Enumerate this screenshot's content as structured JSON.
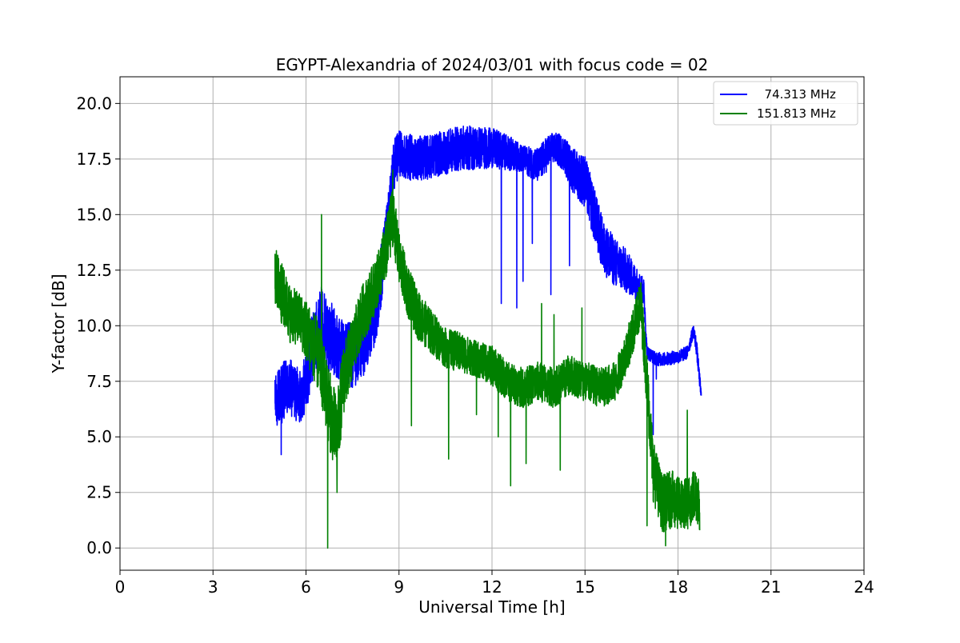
{
  "chart_data": {
    "type": "line",
    "title": "EGYPT-Alexandria of 2024/03/01 with focus code = 02",
    "xlabel": "Universal Time [h]",
    "ylabel": "Y-factor [dB]",
    "xlim": [
      0,
      24
    ],
    "ylim": [
      -1,
      21.2
    ],
    "xticks": [
      0,
      3,
      6,
      9,
      12,
      15,
      18,
      21,
      24
    ],
    "yticks": [
      0.0,
      2.5,
      5.0,
      7.5,
      10.0,
      12.5,
      15.0,
      17.5,
      20.0
    ],
    "xtick_labels": [
      "0",
      "3",
      "6",
      "9",
      "12",
      "15",
      "18",
      "21",
      "24"
    ],
    "ytick_labels": [
      "0.0",
      "2.5",
      "5.0",
      "7.5",
      "10.0",
      "12.5",
      "15.0",
      "17.5",
      "20.0"
    ],
    "grid": true,
    "legend_position": "top-right",
    "series": [
      {
        "name": "  74.313 MHz",
        "color": "#0000ff",
        "x": [
          5.0,
          5.2,
          5.5,
          5.8,
          6.0,
          6.2,
          6.5,
          6.8,
          7.0,
          7.3,
          7.6,
          8.0,
          8.3,
          8.6,
          8.8,
          9.0,
          9.5,
          10.0,
          10.5,
          11.0,
          11.5,
          12.0,
          12.5,
          13.0,
          13.5,
          13.8,
          14.0,
          14.3,
          14.6,
          15.0,
          15.3,
          15.6,
          16.0,
          16.3,
          16.6,
          16.9,
          17.0,
          17.3,
          17.6,
          18.0,
          18.3,
          18.5,
          18.6,
          18.75
        ],
        "y": [
          6.5,
          7.0,
          7.2,
          6.8,
          7.5,
          9.0,
          10.0,
          9.5,
          9.0,
          8.5,
          8.8,
          9.5,
          11.0,
          14.0,
          17.0,
          17.8,
          17.5,
          17.6,
          17.8,
          18.0,
          18.0,
          18.0,
          17.8,
          17.5,
          17.2,
          17.8,
          18.0,
          17.8,
          17.0,
          16.5,
          15.0,
          13.5,
          12.8,
          12.5,
          12.0,
          11.5,
          8.8,
          8.5,
          8.5,
          8.6,
          8.8,
          9.8,
          9.0,
          6.8
        ],
        "noise": [
          1.2,
          1.4,
          1.3,
          1.2,
          1.4,
          1.6,
          1.8,
          1.6,
          1.6,
          1.6,
          1.5,
          1.5,
          1.4,
          1.4,
          1.2,
          1.1,
          1.0,
          1.0,
          1.0,
          1.0,
          1.0,
          0.9,
          0.8,
          0.6,
          0.8,
          0.8,
          0.7,
          0.8,
          1.0,
          1.2,
          1.2,
          1.2,
          1.1,
          1.0,
          0.8,
          0.6,
          0.3,
          0.3,
          0.3,
          0.3,
          0.3,
          0.3,
          0.4,
          0.3
        ],
        "spikes": [
          [
            5.2,
            4.2
          ],
          [
            12.3,
            11.0
          ],
          [
            12.8,
            10.8
          ],
          [
            13.0,
            12.0
          ],
          [
            13.3,
            13.7
          ],
          [
            13.9,
            11.4
          ],
          [
            14.5,
            12.7
          ],
          [
            14.6,
            16.8
          ],
          [
            17.2,
            5.1
          ],
          [
            17.3,
            7.6
          ],
          [
            15.8,
            12.3
          ]
        ]
      },
      {
        "name": "151.813 MHz",
        "color": "#008000",
        "x": [
          5.0,
          5.2,
          5.5,
          5.8,
          6.0,
          6.3,
          6.5,
          6.8,
          7.0,
          7.2,
          7.5,
          7.8,
          8.0,
          8.3,
          8.6,
          8.8,
          9.0,
          9.3,
          9.6,
          10.0,
          10.5,
          11.0,
          11.5,
          12.0,
          12.5,
          13.0,
          13.5,
          14.0,
          14.5,
          15.0,
          15.5,
          16.0,
          16.5,
          16.8,
          17.0,
          17.2,
          17.5,
          17.8,
          18.0,
          18.3,
          18.6,
          18.7
        ],
        "y": [
          12.3,
          11.5,
          10.5,
          10.3,
          9.8,
          9.0,
          8.0,
          6.0,
          5.0,
          7.5,
          9.0,
          10.5,
          11.0,
          12.0,
          13.5,
          15.0,
          13.0,
          11.5,
          10.5,
          9.8,
          9.0,
          8.8,
          8.5,
          8.2,
          7.5,
          7.2,
          7.5,
          7.2,
          7.8,
          7.5,
          7.2,
          7.5,
          9.5,
          11.0,
          7.5,
          3.5,
          2.0,
          2.2,
          2.0,
          2.0,
          2.5,
          2.0
        ],
        "noise": [
          1.3,
          1.4,
          1.3,
          1.2,
          1.4,
          1.6,
          1.6,
          1.8,
          1.8,
          1.6,
          1.4,
          1.3,
          1.3,
          1.2,
          1.4,
          1.4,
          1.2,
          1.2,
          1.1,
          1.0,
          0.9,
          0.9,
          0.8,
          0.9,
          0.9,
          0.9,
          0.9,
          0.9,
          0.9,
          0.9,
          0.9,
          0.9,
          1.0,
          1.1,
          1.3,
          1.4,
          1.3,
          1.3,
          1.2,
          1.2,
          1.3,
          1.3
        ],
        "spikes": [
          [
            6.5,
            15.0
          ],
          [
            6.7,
            0.0
          ],
          [
            7.0,
            2.5
          ],
          [
            8.8,
            17.0
          ],
          [
            9.4,
            5.5
          ],
          [
            10.6,
            4.0
          ],
          [
            11.5,
            6.0
          ],
          [
            12.2,
            5.0
          ],
          [
            12.6,
            2.8
          ],
          [
            13.1,
            3.8
          ],
          [
            13.6,
            11.0
          ],
          [
            14.0,
            10.5
          ],
          [
            14.2,
            3.5
          ],
          [
            14.9,
            10.8
          ],
          [
            17.0,
            1.0
          ],
          [
            17.6,
            0.1
          ],
          [
            18.3,
            6.2
          ],
          [
            18.7,
            0.8
          ]
        ]
      }
    ]
  }
}
